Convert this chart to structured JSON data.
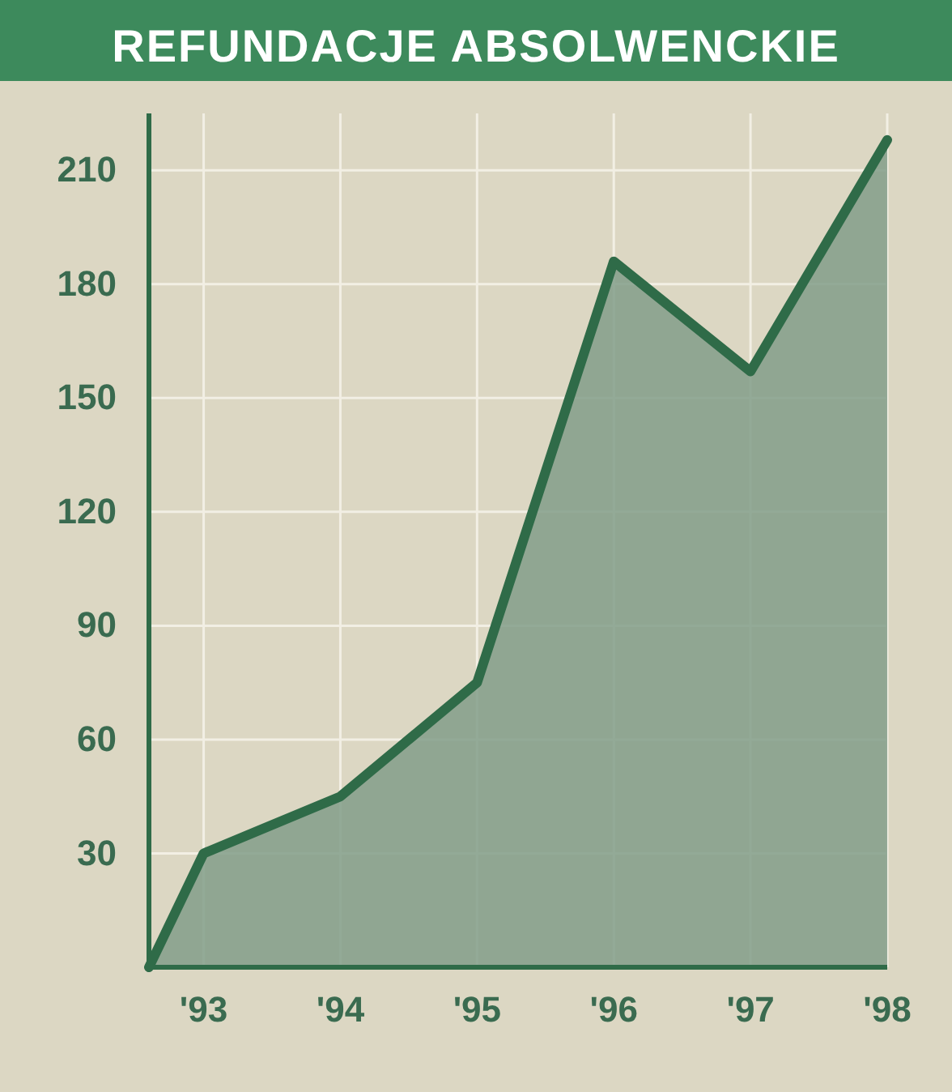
{
  "chart_data": {
    "type": "area",
    "title": "REFUNDACJE ABSOLWENCKIE",
    "x": [
      1992.6,
      1993,
      1994,
      1995,
      1996,
      1997,
      1998
    ],
    "series": [
      {
        "color": "#2f6b48",
        "values": [
          0,
          30,
          45,
          75,
          186,
          157,
          218
        ]
      }
    ],
    "xlim": [
      1992.6,
      1998
    ],
    "xticks": [
      {
        "value": 1993,
        "label": "'93"
      },
      {
        "value": 1994,
        "label": "'94"
      },
      {
        "value": 1995,
        "label": "'95"
      },
      {
        "value": 1996,
        "label": "'96"
      },
      {
        "value": 1997,
        "label": "'97"
      },
      {
        "value": 1998,
        "label": "'98"
      }
    ],
    "ylim": [
      0,
      225
    ],
    "yticks": [
      30,
      60,
      90,
      120,
      150,
      180,
      210
    ],
    "grid": true
  }
}
